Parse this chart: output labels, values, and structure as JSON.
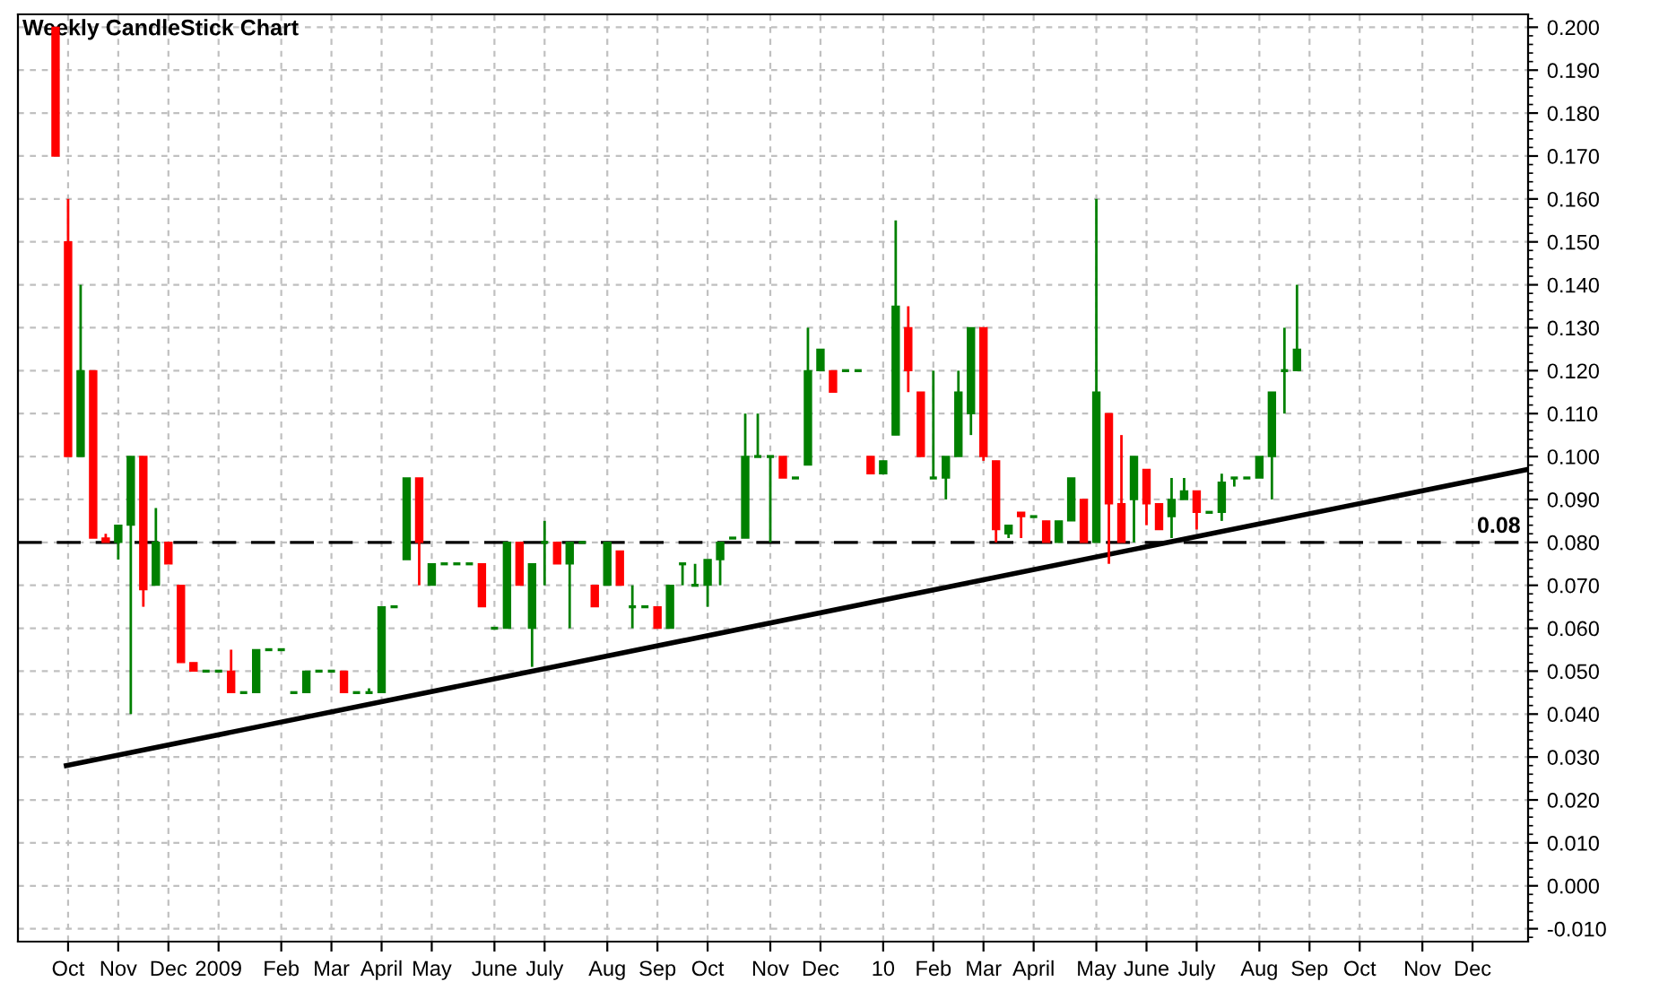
{
  "chart_data": {
    "type": "candlestick",
    "title": "Weekly CandleStick Chart",
    "x": [
      "2008-10-05",
      "2008-10-12",
      "2008-10-19",
      "2008-10-26",
      "2008-11-02",
      "2008-11-09",
      "2008-11-16",
      "2008-11-23",
      "2008-11-30",
      "2008-12-07",
      "2008-12-14",
      "2008-12-21",
      "2008-12-28",
      "2009-01-04",
      "2009-01-11",
      "2009-01-18",
      "2009-01-25",
      "2009-02-01",
      "2009-02-08",
      "2009-02-15",
      "2009-02-22",
      "2009-03-01",
      "2009-03-08",
      "2009-03-15",
      "2009-03-22",
      "2009-03-29",
      "2009-04-05",
      "2009-04-12",
      "2009-04-19",
      "2009-04-26",
      "2009-05-03",
      "2009-05-10",
      "2009-05-17",
      "2009-05-24",
      "2009-05-31",
      "2009-06-07",
      "2009-06-14",
      "2009-06-21",
      "2009-06-28",
      "2009-07-05",
      "2009-07-12",
      "2009-07-19",
      "2009-07-26",
      "2009-08-02",
      "2009-08-09",
      "2009-08-16",
      "2009-08-23",
      "2009-08-30",
      "2009-09-06",
      "2009-09-13",
      "2009-09-20",
      "2009-09-27",
      "2009-10-04",
      "2009-10-11",
      "2009-10-18",
      "2009-10-25",
      "2009-11-01",
      "2009-11-08",
      "2009-11-15",
      "2009-11-22",
      "2009-11-29",
      "2009-12-06",
      "2009-12-13",
      "2009-12-20",
      "2009-12-27",
      "2010-01-03",
      "2010-01-10",
      "2010-01-17",
      "2010-01-24",
      "2010-01-31",
      "2010-02-07",
      "2010-02-14",
      "2010-02-21",
      "2010-02-28",
      "2010-03-07",
      "2010-03-14",
      "2010-03-21",
      "2010-03-28",
      "2010-04-04",
      "2010-04-11",
      "2010-04-18",
      "2010-04-25",
      "2010-05-02",
      "2010-05-09",
      "2010-05-16",
      "2010-05-23",
      "2010-05-30",
      "2010-06-06",
      "2010-06-13",
      "2010-06-20",
      "2010-06-27",
      "2010-07-04",
      "2010-07-11",
      "2010-07-18",
      "2010-07-25",
      "2010-08-01",
      "2010-08-08",
      "2010-08-15",
      "2010-08-22",
      "2010-08-29"
    ],
    "ohlc": [
      [
        0.2,
        0.2,
        0.17,
        0.17
      ],
      [
        0.15,
        0.16,
        0.1,
        0.1
      ],
      [
        0.1,
        0.14,
        0.1,
        0.12
      ],
      [
        0.12,
        0.12,
        0.081,
        0.081
      ],
      [
        0.081,
        0.082,
        0.08,
        0.08
      ],
      [
        0.08,
        0.084,
        0.076,
        0.084
      ],
      [
        0.084,
        0.1,
        0.04,
        0.1
      ],
      [
        0.1,
        0.1,
        0.065,
        0.069
      ],
      [
        0.07,
        0.088,
        0.07,
        0.08
      ],
      [
        0.08,
        0.08,
        0.075,
        0.075
      ],
      [
        0.07,
        0.07,
        0.052,
        0.052
      ],
      [
        0.052,
        0.052,
        0.05,
        0.05
      ],
      [
        0.05,
        0.05,
        0.05,
        0.05
      ],
      [
        0.05,
        0.05,
        0.05,
        0.05
      ],
      [
        0.05,
        0.055,
        0.045,
        0.045
      ],
      [
        0.045,
        0.045,
        0.045,
        0.045
      ],
      [
        0.045,
        0.055,
        0.045,
        0.055
      ],
      [
        0.055,
        0.055,
        0.055,
        0.055
      ],
      [
        0.055,
        0.055,
        0.055,
        0.055
      ],
      [
        0.045,
        0.045,
        0.045,
        0.045
      ],
      [
        0.045,
        0.05,
        0.045,
        0.05
      ],
      [
        0.05,
        0.05,
        0.05,
        0.05
      ],
      [
        0.05,
        0.05,
        0.05,
        0.05
      ],
      [
        0.05,
        0.05,
        0.045,
        0.045
      ],
      [
        0.045,
        0.045,
        0.045,
        0.045
      ],
      [
        0.045,
        0.046,
        0.045,
        0.045
      ],
      [
        0.045,
        0.065,
        0.045,
        0.065
      ],
      [
        0.065,
        0.065,
        0.065,
        0.065
      ],
      [
        0.076,
        0.095,
        0.076,
        0.095
      ],
      [
        0.095,
        0.095,
        0.07,
        0.08
      ],
      [
        0.07,
        0.075,
        0.07,
        0.075
      ],
      [
        0.075,
        0.075,
        0.075,
        0.075
      ],
      [
        0.075,
        0.075,
        0.075,
        0.075
      ],
      [
        0.075,
        0.075,
        0.075,
        0.075
      ],
      [
        0.075,
        0.075,
        0.065,
        0.065
      ],
      [
        0.06,
        0.06,
        0.06,
        0.06
      ],
      [
        0.06,
        0.08,
        0.06,
        0.08
      ],
      [
        0.08,
        0.08,
        0.07,
        0.07
      ],
      [
        0.06,
        0.075,
        0.051,
        0.075
      ],
      [
        0.08,
        0.085,
        0.07,
        0.08
      ],
      [
        0.08,
        0.08,
        0.075,
        0.075
      ],
      [
        0.075,
        0.08,
        0.06,
        0.08
      ],
      [
        0.08,
        0.08,
        0.08,
        0.08
      ],
      [
        0.07,
        0.07,
        0.065,
        0.065
      ],
      [
        0.07,
        0.08,
        0.07,
        0.08
      ],
      [
        0.078,
        0.078,
        0.07,
        0.07
      ],
      [
        0.065,
        0.07,
        0.06,
        0.065
      ],
      [
        0.065,
        0.065,
        0.065,
        0.065
      ],
      [
        0.065,
        0.065,
        0.06,
        0.06
      ],
      [
        0.06,
        0.07,
        0.06,
        0.07
      ],
      [
        0.075,
        0.075,
        0.07,
        0.075
      ],
      [
        0.07,
        0.075,
        0.07,
        0.07
      ],
      [
        0.07,
        0.076,
        0.065,
        0.076
      ],
      [
        0.076,
        0.08,
        0.07,
        0.08
      ],
      [
        0.081,
        0.081,
        0.081,
        0.081
      ],
      [
        0.081,
        0.11,
        0.081,
        0.1
      ],
      [
        0.1,
        0.11,
        0.1,
        0.1
      ],
      [
        0.1,
        0.1,
        0.08,
        0.1
      ],
      [
        0.1,
        0.1,
        0.095,
        0.095
      ],
      [
        0.095,
        0.095,
        0.095,
        0.095
      ],
      [
        0.098,
        0.13,
        0.098,
        0.12
      ],
      [
        0.12,
        0.125,
        0.12,
        0.125
      ],
      [
        0.12,
        0.12,
        0.115,
        0.115
      ],
      [
        0.12,
        0.12,
        0.12,
        0.12
      ],
      [
        0.12,
        0.12,
        0.12,
        0.12
      ],
      [
        0.1,
        0.1,
        0.096,
        0.096
      ],
      [
        0.096,
        0.099,
        0.096,
        0.099
      ],
      [
        0.105,
        0.155,
        0.105,
        0.135
      ],
      [
        0.13,
        0.135,
        0.115,
        0.12
      ],
      [
        0.115,
        0.115,
        0.1,
        0.1
      ],
      [
        0.095,
        0.12,
        0.095,
        0.095
      ],
      [
        0.095,
        0.1,
        0.09,
        0.1
      ],
      [
        0.1,
        0.12,
        0.1,
        0.115
      ],
      [
        0.11,
        0.13,
        0.105,
        0.13
      ],
      [
        0.13,
        0.13,
        0.099,
        0.1
      ],
      [
        0.099,
        0.099,
        0.08,
        0.083
      ],
      [
        0.082,
        0.084,
        0.081,
        0.084
      ],
      [
        0.087,
        0.087,
        0.081,
        0.086
      ],
      [
        0.086,
        0.086,
        0.086,
        0.086
      ],
      [
        0.085,
        0.085,
        0.08,
        0.08
      ],
      [
        0.08,
        0.085,
        0.08,
        0.085
      ],
      [
        0.085,
        0.095,
        0.085,
        0.095
      ],
      [
        0.09,
        0.09,
        0.08,
        0.08
      ],
      [
        0.08,
        0.16,
        0.08,
        0.115
      ],
      [
        0.11,
        0.11,
        0.075,
        0.089
      ],
      [
        0.089,
        0.105,
        0.08,
        0.08
      ],
      [
        0.09,
        0.1,
        0.08,
        0.1
      ],
      [
        0.097,
        0.097,
        0.084,
        0.089
      ],
      [
        0.089,
        0.089,
        0.083,
        0.083
      ],
      [
        0.086,
        0.095,
        0.081,
        0.09
      ],
      [
        0.09,
        0.095,
        0.09,
        0.092
      ],
      [
        0.092,
        0.092,
        0.083,
        0.087
      ],
      [
        0.087,
        0.087,
        0.087,
        0.087
      ],
      [
        0.087,
        0.096,
        0.085,
        0.094
      ],
      [
        0.095,
        0.095,
        0.093,
        0.095
      ],
      [
        0.095,
        0.095,
        0.095,
        0.095
      ],
      [
        0.095,
        0.1,
        0.095,
        0.1
      ],
      [
        0.1,
        0.115,
        0.09,
        0.115
      ],
      [
        0.12,
        0.13,
        0.11,
        0.12
      ],
      [
        0.12,
        0.14,
        0.12,
        0.125
      ]
    ],
    "colors": [
      "#ff0000",
      "#ff0000",
      "#008000",
      "#ff0000",
      "#ff0000",
      "#008000",
      "#008000",
      "#ff0000",
      "#008000",
      "#ff0000",
      "#ff0000",
      "#ff0000",
      "#008000",
      "#008000",
      "#ff0000",
      "#008000",
      "#008000",
      "#008000",
      "#008000",
      "#008000",
      "#008000",
      "#008000",
      "#008000",
      "#ff0000",
      "#008000",
      "#008000",
      "#008000",
      "#008000",
      "#008000",
      "#ff0000",
      "#008000",
      "#008000",
      "#008000",
      "#008000",
      "#ff0000",
      "#008000",
      "#008000",
      "#ff0000",
      "#008000",
      "#008000",
      "#ff0000",
      "#008000",
      "#008000",
      "#ff0000",
      "#008000",
      "#ff0000",
      "#008000",
      "#008000",
      "#ff0000",
      "#008000",
      "#008000",
      "#008000",
      "#008000",
      "#008000",
      "#008000",
      "#008000",
      "#008000",
      "#008000",
      "#ff0000",
      "#008000",
      "#008000",
      "#008000",
      "#ff0000",
      "#008000",
      "#008000",
      "#ff0000",
      "#008000",
      "#008000",
      "#ff0000",
      "#ff0000",
      "#008000",
      "#008000",
      "#008000",
      "#008000",
      "#ff0000",
      "#ff0000",
      "#008000",
      "#ff0000",
      "#008000",
      "#ff0000",
      "#008000",
      "#008000",
      "#ff0000",
      "#008000",
      "#ff0000",
      "#ff0000",
      "#008000",
      "#ff0000",
      "#ff0000",
      "#008000",
      "#008000",
      "#ff0000",
      "#008000",
      "#008000",
      "#008000",
      "#008000",
      "#008000",
      "#008000",
      "#008000",
      "#008000"
    ],
    "series": [
      {
        "type": "line",
        "x": [
          "2008-10-11",
          "2011-01-05"
        ],
        "values": [
          0.028,
          0.097
        ],
        "color": "#000000"
      }
    ],
    "ref_lines": [
      {
        "axis": "y",
        "value": 0.08,
        "label": "0.08",
        "color": "#000000",
        "line_style": "dashed"
      }
    ],
    "xlim": [
      "2008-09-14",
      "2011-01-05"
    ],
    "xticks": [
      {
        "value": "2008-10-12",
        "label": "Oct"
      },
      {
        "value": "2008-11-09",
        "label": "Nov"
      },
      {
        "value": "2008-12-07",
        "label": "Dec"
      },
      {
        "value": "2009-01-04",
        "label": "2009"
      },
      {
        "value": "2009-02-08",
        "label": "Feb"
      },
      {
        "value": "2009-03-08",
        "label": "Mar"
      },
      {
        "value": "2009-04-05",
        "label": "April"
      },
      {
        "value": "2009-05-03",
        "label": "May"
      },
      {
        "value": "2009-06-07",
        "label": "June"
      },
      {
        "value": "2009-07-05",
        "label": "July"
      },
      {
        "value": "2009-08-09",
        "label": "Aug"
      },
      {
        "value": "2009-09-06",
        "label": "Sep"
      },
      {
        "value": "2009-10-04",
        "label": "Oct"
      },
      {
        "value": "2009-11-08",
        "label": "Nov"
      },
      {
        "value": "2009-12-06",
        "label": "Dec"
      },
      {
        "value": "2010-01-10",
        "label": "10"
      },
      {
        "value": "2010-02-07",
        "label": "Feb"
      },
      {
        "value": "2010-03-07",
        "label": "Mar"
      },
      {
        "value": "2010-04-04",
        "label": "April"
      },
      {
        "value": "2010-05-09",
        "label": "May"
      },
      {
        "value": "2010-06-06",
        "label": "June"
      },
      {
        "value": "2010-07-04",
        "label": "July"
      },
      {
        "value": "2010-08-08",
        "label": "Aug"
      },
      {
        "value": "2010-09-05",
        "label": "Sep"
      },
      {
        "value": "2010-10-03",
        "label": "Oct"
      },
      {
        "value": "2010-11-07",
        "label": "Nov"
      },
      {
        "value": "2010-12-05",
        "label": "Dec"
      }
    ],
    "ylim": [
      -0.013,
      0.203
    ],
    "yticks": [
      {
        "value": -0.01,
        "label": "-0.010"
      },
      {
        "value": 0,
        "label": "0.000"
      },
      {
        "value": 0.01,
        "label": "0.010"
      },
      {
        "value": 0.02,
        "label": "0.020"
      },
      {
        "value": 0.03,
        "label": "0.030"
      },
      {
        "value": 0.04,
        "label": "0.040"
      },
      {
        "value": 0.05,
        "label": "0.050"
      },
      {
        "value": 0.06,
        "label": "0.060"
      },
      {
        "value": 0.07,
        "label": "0.070"
      },
      {
        "value": 0.08,
        "label": "0.080"
      },
      {
        "value": 0.09,
        "label": "0.090"
      },
      {
        "value": 0.1,
        "label": "0.100"
      },
      {
        "value": 0.11,
        "label": "0.110"
      },
      {
        "value": 0.12,
        "label": "0.120"
      },
      {
        "value": 0.13,
        "label": "0.130"
      },
      {
        "value": 0.14,
        "label": "0.140"
      },
      {
        "value": 0.15,
        "label": "0.150"
      },
      {
        "value": 0.16,
        "label": "0.160"
      },
      {
        "value": 0.17,
        "label": "0.170"
      },
      {
        "value": 0.18,
        "label": "0.180"
      },
      {
        "value": 0.19,
        "label": "0.190"
      },
      {
        "value": 0.2,
        "label": "0.200"
      }
    ],
    "grid": true
  }
}
